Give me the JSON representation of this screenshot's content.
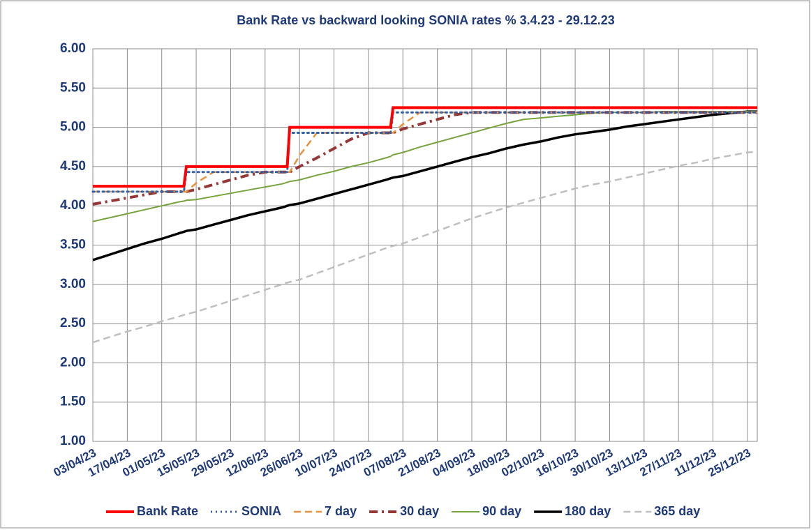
{
  "chart_data": {
    "type": "line",
    "title": "Bank Rate vs backward looking SONIA rates % 3.4.23 - 29.12.23",
    "x": [
      "03/04/23",
      "10/04/23",
      "17/04/23",
      "24/04/23",
      "01/05/23",
      "08/05/23",
      "10/05/23",
      "11/05/23",
      "15/05/23",
      "22/05/23",
      "29/05/23",
      "05/06/23",
      "12/06/23",
      "19/06/23",
      "21/06/23",
      "22/06/23",
      "26/06/23",
      "03/07/23",
      "10/07/23",
      "17/07/23",
      "24/07/23",
      "31/07/23",
      "02/08/23",
      "03/08/23",
      "07/08/23",
      "14/08/23",
      "21/08/23",
      "28/08/23",
      "04/09/23",
      "11/09/23",
      "18/09/23",
      "25/09/23",
      "02/10/23",
      "09/10/23",
      "16/10/23",
      "23/10/23",
      "30/10/23",
      "06/11/23",
      "13/11/23",
      "20/11/23",
      "27/11/23",
      "04/12/23",
      "11/12/23",
      "18/12/23",
      "25/12/23",
      "29/12/23"
    ],
    "xlim": [
      "03/04/23",
      "29/12/23"
    ],
    "xticks": [
      "03/04/23",
      "17/04/23",
      "01/05/23",
      "15/05/23",
      "29/05/23",
      "12/06/23",
      "26/06/23",
      "10/07/23",
      "24/07/23",
      "07/08/23",
      "21/08/23",
      "04/09/23",
      "18/09/23",
      "02/10/23",
      "16/10/23",
      "30/10/23",
      "13/11/23",
      "27/11/23",
      "11/12/23",
      "25/12/23"
    ],
    "ylim": [
      1,
      6
    ],
    "yticks": [
      {
        "value": 1,
        "label": "1.00"
      },
      {
        "value": 1.5,
        "label": "1.50"
      },
      {
        "value": 2,
        "label": "2.00"
      },
      {
        "value": 2.5,
        "label": "2.50"
      },
      {
        "value": 3,
        "label": "3.00"
      },
      {
        "value": 3.5,
        "label": "3.50"
      },
      {
        "value": 4,
        "label": "4.00"
      },
      {
        "value": 4.5,
        "label": "4.50"
      },
      {
        "value": 5,
        "label": "5.00"
      },
      {
        "value": 5.5,
        "label": "5.50"
      },
      {
        "value": 6,
        "label": "6.00"
      }
    ],
    "grid": true,
    "legend": "bottom",
    "series": [
      {
        "name": "Bank Rate",
        "color": "#ff0000",
        "dash": "solid",
        "width": 4,
        "values": [
          4.25,
          4.25,
          4.25,
          4.25,
          4.25,
          4.25,
          4.25,
          4.5,
          4.5,
          4.5,
          4.5,
          4.5,
          4.5,
          4.5,
          4.5,
          5,
          5,
          5,
          5,
          5,
          5,
          5,
          5,
          5.25,
          5.25,
          5.25,
          5.25,
          5.25,
          5.25,
          5.25,
          5.25,
          5.25,
          5.25,
          5.25,
          5.25,
          5.25,
          5.25,
          5.25,
          5.25,
          5.25,
          5.25,
          5.25,
          5.25,
          5.25,
          5.25,
          5.25
        ]
      },
      {
        "name": "SONIA",
        "color": "#2e5fa8",
        "dash": "dot",
        "width": 3,
        "values": [
          4.18,
          4.18,
          4.18,
          4.18,
          4.18,
          4.18,
          4.18,
          4.43,
          4.43,
          4.43,
          4.43,
          4.43,
          4.43,
          4.43,
          4.43,
          4.93,
          4.93,
          4.93,
          4.93,
          4.93,
          4.93,
          4.93,
          4.93,
          5.19,
          5.19,
          5.19,
          5.19,
          5.19,
          5.19,
          5.19,
          5.19,
          5.19,
          5.19,
          5.19,
          5.19,
          5.19,
          5.19,
          5.19,
          5.19,
          5.19,
          5.19,
          5.19,
          5.19,
          5.19,
          5.19,
          5.19
        ]
      },
      {
        "name": "7 day",
        "color": "#e8913a",
        "dash": "dash",
        "width": 2.5,
        "values": [
          4.18,
          4.18,
          4.18,
          4.18,
          4.18,
          4.18,
          4.18,
          4.18,
          4.29,
          4.43,
          4.43,
          4.43,
          4.43,
          4.43,
          4.43,
          4.43,
          4.64,
          4.93,
          4.93,
          4.93,
          4.93,
          4.93,
          4.93,
          4.93,
          5.04,
          5.19,
          5.19,
          5.19,
          5.19,
          5.19,
          5.19,
          5.19,
          5.19,
          5.19,
          5.19,
          5.19,
          5.19,
          5.19,
          5.19,
          5.19,
          5.19,
          5.19,
          5.19,
          5.19,
          5.19,
          5.19
        ]
      },
      {
        "name": "30 day",
        "color": "#953735",
        "dash": "dashdot",
        "width": 4,
        "values": [
          4.02,
          4.06,
          4.1,
          4.14,
          4.18,
          4.18,
          4.18,
          4.18,
          4.21,
          4.27,
          4.33,
          4.39,
          4.43,
          4.43,
          4.43,
          4.43,
          4.5,
          4.61,
          4.73,
          4.85,
          4.93,
          4.93,
          4.93,
          4.93,
          4.98,
          5.04,
          5.1,
          5.16,
          5.19,
          5.19,
          5.19,
          5.19,
          5.19,
          5.19,
          5.19,
          5.19,
          5.19,
          5.19,
          5.19,
          5.19,
          5.19,
          5.19,
          5.19,
          5.19,
          5.19,
          5.19
        ]
      },
      {
        "name": "90 day",
        "color": "#77a33d",
        "dash": "solid",
        "width": 2,
        "values": [
          3.8,
          3.85,
          3.9,
          3.95,
          4,
          4.05,
          4.06,
          4.07,
          4.08,
          4.12,
          4.16,
          4.2,
          4.24,
          4.28,
          4.3,
          4.31,
          4.33,
          4.39,
          4.44,
          4.5,
          4.55,
          4.61,
          4.63,
          4.65,
          4.68,
          4.75,
          4.81,
          4.87,
          4.93,
          4.99,
          5.05,
          5.1,
          5.12,
          5.14,
          5.16,
          5.18,
          5.19,
          5.19,
          5.19,
          5.2,
          5.2,
          5.2,
          5.2,
          5.2,
          5.2,
          5.2
        ]
      },
      {
        "name": "180 day",
        "color": "#000000",
        "dash": "solid",
        "width": 3.5,
        "values": [
          3.31,
          3.38,
          3.45,
          3.52,
          3.58,
          3.65,
          3.67,
          3.68,
          3.7,
          3.76,
          3.82,
          3.88,
          3.93,
          3.98,
          4,
          4.01,
          4.03,
          4.09,
          4.15,
          4.21,
          4.27,
          4.33,
          4.35,
          4.36,
          4.38,
          4.44,
          4.5,
          4.56,
          4.62,
          4.67,
          4.73,
          4.78,
          4.82,
          4.87,
          4.91,
          4.94,
          4.97,
          5.01,
          5.04,
          5.07,
          5.1,
          5.13,
          5.16,
          5.18,
          5.2,
          5.2
        ]
      },
      {
        "name": "365 day",
        "color": "#bfbfbf",
        "dash": "dash",
        "width": 2.5,
        "values": [
          2.26,
          2.33,
          2.4,
          2.46,
          2.53,
          2.59,
          2.61,
          2.62,
          2.65,
          2.72,
          2.79,
          2.86,
          2.93,
          3,
          3.02,
          3.03,
          3.06,
          3.14,
          3.22,
          3.3,
          3.38,
          3.46,
          3.48,
          3.49,
          3.52,
          3.6,
          3.68,
          3.76,
          3.84,
          3.91,
          3.98,
          4.04,
          4.1,
          4.16,
          4.22,
          4.27,
          4.31,
          4.36,
          4.41,
          4.46,
          4.51,
          4.55,
          4.6,
          4.64,
          4.68,
          4.69
        ]
      }
    ]
  }
}
